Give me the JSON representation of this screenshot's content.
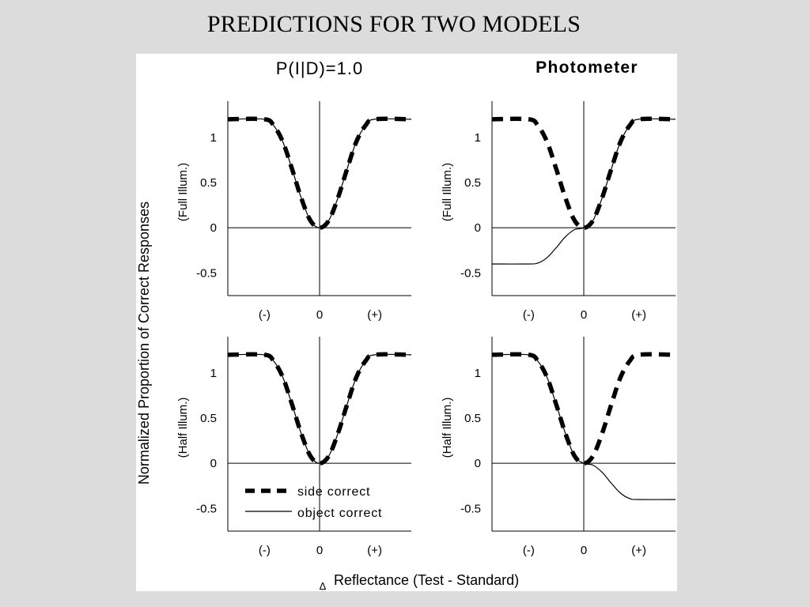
{
  "slide": {
    "title": "PREDICTIONS FOR TWO MODELS"
  },
  "figure": {
    "columns": [
      "P(I|D)=1.0",
      "Photometer"
    ],
    "ylabel": "Normalized Proportion of Correct Responses",
    "row_labels": [
      "(Full Illum.)",
      "(Half Illum.)"
    ],
    "xlabel_symbol": "Δ",
    "xlabel": "Reflectance (Test - Standard)",
    "legend": [
      {
        "label": "side correct",
        "style": "dashed-thick"
      },
      {
        "label": "object correct",
        "style": "solid-thin"
      }
    ]
  },
  "chart_data": [
    {
      "type": "line",
      "panel": "P(I|D)=1.0 / Full Illum.",
      "x_ticks": [
        "(-)",
        "0",
        "(+)"
      ],
      "y_ticks": [
        "-0.5",
        "0",
        "0.5",
        "1"
      ],
      "xlim": [
        -1,
        1
      ],
      "ylim": [
        -0.75,
        1.4
      ],
      "x": [
        -1,
        -0.6,
        -0.5,
        -0.4,
        -0.3,
        -0.2,
        -0.1,
        0,
        0.1,
        0.2,
        0.3,
        0.4,
        0.5,
        0.6,
        1
      ],
      "series": [
        {
          "name": "side correct",
          "values": [
            1.2,
            1.2,
            1.13,
            0.95,
            0.65,
            0.33,
            0.08,
            0,
            0.08,
            0.33,
            0.65,
            0.95,
            1.13,
            1.2,
            1.2
          ]
        },
        {
          "name": "object correct",
          "values": [
            1.2,
            1.2,
            1.13,
            0.95,
            0.65,
            0.33,
            0.08,
            0,
            0.08,
            0.33,
            0.65,
            0.95,
            1.13,
            1.2,
            1.2
          ]
        }
      ]
    },
    {
      "type": "line",
      "panel": "Photometer / Full Illum.",
      "x_ticks": [
        "(-)",
        "0",
        "(+)"
      ],
      "y_ticks": [
        "-0.5",
        "0",
        "0.5",
        "1"
      ],
      "xlim": [
        -1,
        1
      ],
      "ylim": [
        -0.75,
        1.4
      ],
      "x": [
        -1,
        -0.6,
        -0.5,
        -0.4,
        -0.3,
        -0.2,
        -0.1,
        0,
        0.1,
        0.2,
        0.3,
        0.4,
        0.5,
        0.6,
        1
      ],
      "series": [
        {
          "name": "side correct",
          "values": [
            1.2,
            1.2,
            1.13,
            0.95,
            0.65,
            0.33,
            0.08,
            0,
            0.08,
            0.33,
            0.65,
            0.95,
            1.13,
            1.2,
            1.2
          ]
        },
        {
          "name": "object correct",
          "values": [
            -0.4,
            -0.4,
            -0.39,
            -0.33,
            -0.22,
            -0.1,
            -0.02,
            0,
            0.08,
            0.33,
            0.65,
            0.95,
            1.13,
            1.2,
            1.2
          ]
        }
      ]
    },
    {
      "type": "line",
      "panel": "P(I|D)=1.0 / Half Illum.",
      "x_ticks": [
        "(-)",
        "0",
        "(+)"
      ],
      "y_ticks": [
        "-0.5",
        "0",
        "0.5",
        "1"
      ],
      "xlim": [
        -1,
        1
      ],
      "ylim": [
        -0.75,
        1.4
      ],
      "x": [
        -1,
        -0.6,
        -0.5,
        -0.4,
        -0.3,
        -0.2,
        -0.1,
        0,
        0.1,
        0.2,
        0.3,
        0.4,
        0.5,
        0.6,
        1
      ],
      "series": [
        {
          "name": "side correct",
          "values": [
            1.2,
            1.2,
            1.13,
            0.95,
            0.65,
            0.33,
            0.08,
            0,
            0.08,
            0.33,
            0.65,
            0.95,
            1.13,
            1.2,
            1.2
          ]
        },
        {
          "name": "object correct",
          "values": [
            1.2,
            1.2,
            1.13,
            0.95,
            0.65,
            0.33,
            0.08,
            0,
            0.08,
            0.33,
            0.65,
            0.95,
            1.13,
            1.2,
            1.2
          ]
        }
      ]
    },
    {
      "type": "line",
      "panel": "Photometer / Half Illum.",
      "x_ticks": [
        "(-)",
        "0",
        "(+)"
      ],
      "y_ticks": [
        "-0.5",
        "0",
        "0.5",
        "1"
      ],
      "xlim": [
        -1,
        1
      ],
      "ylim": [
        -0.75,
        1.4
      ],
      "x": [
        -1,
        -0.6,
        -0.5,
        -0.4,
        -0.3,
        -0.2,
        -0.1,
        0,
        0.1,
        0.2,
        0.3,
        0.4,
        0.5,
        0.6,
        1
      ],
      "series": [
        {
          "name": "side correct",
          "values": [
            1.2,
            1.2,
            1.13,
            0.95,
            0.65,
            0.33,
            0.08,
            0,
            0.08,
            0.33,
            0.65,
            0.95,
            1.13,
            1.2,
            1.2
          ]
        },
        {
          "name": "object correct",
          "values": [
            1.2,
            1.2,
            1.13,
            0.95,
            0.65,
            0.33,
            0.08,
            0,
            -0.02,
            -0.1,
            -0.22,
            -0.33,
            -0.39,
            -0.4,
            -0.4
          ]
        }
      ]
    }
  ]
}
